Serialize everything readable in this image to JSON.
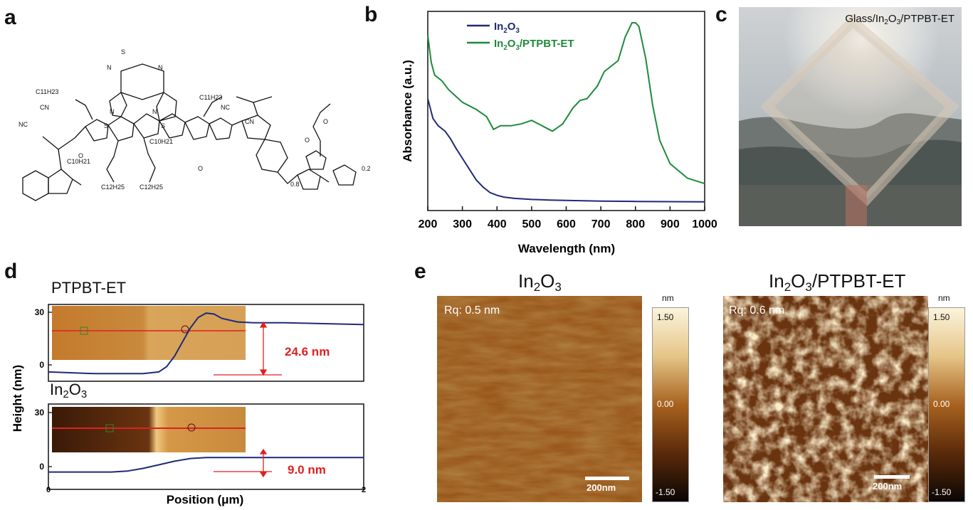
{
  "panels": {
    "a": "a",
    "b": "b",
    "c": "c",
    "d": "d",
    "e": "e"
  },
  "structure": {
    "atoms": {
      "S": "S",
      "N": "N",
      "O": "O",
      "CN": "CN",
      "NC": "NC"
    },
    "c11h23": "C11H23",
    "c10h21": "C10H21",
    "c12h25": "C12H25",
    "sub08": "0.8",
    "sub02": "0.2"
  },
  "colors": {
    "in2o3": "#1f2a78",
    "ptpbt": "#1e8a3a",
    "red": "#e02020"
  },
  "chart_data": [
    {
      "type": "line",
      "xlabel": "Wavelength (nm)",
      "ylabel": "Absorbance (a.u.)",
      "xlim": [
        200,
        1000
      ],
      "xticks": [
        200,
        300,
        400,
        500,
        600,
        700,
        800,
        900,
        1000
      ],
      "legend_position": "top-left",
      "series": [
        {
          "name": "In2O3",
          "color": "#1f2a78",
          "x": [
            200,
            215,
            230,
            250,
            265,
            280,
            300,
            320,
            340,
            360,
            380,
            400,
            420,
            450,
            500,
            550,
            600,
            650,
            700,
            800,
            900,
            1000
          ],
          "y": [
            0.58,
            0.47,
            0.43,
            0.4,
            0.36,
            0.31,
            0.25,
            0.19,
            0.13,
            0.09,
            0.06,
            0.045,
            0.035,
            0.028,
            0.022,
            0.019,
            0.017,
            0.015,
            0.013,
            0.011,
            0.01,
            0.009
          ]
        },
        {
          "name": "In2O3/PTPBT-ET",
          "color": "#1e8a3a",
          "x": [
            200,
            210,
            220,
            240,
            260,
            300,
            340,
            370,
            390,
            410,
            440,
            470,
            500,
            530,
            560,
            590,
            620,
            640,
            660,
            690,
            710,
            730,
            750,
            770,
            790,
            800,
            810,
            830,
            850,
            870,
            900,
            950,
            1000
          ],
          "y": [
            0.93,
            0.78,
            0.71,
            0.68,
            0.63,
            0.56,
            0.52,
            0.48,
            0.41,
            0.43,
            0.43,
            0.44,
            0.46,
            0.43,
            0.4,
            0.44,
            0.53,
            0.57,
            0.58,
            0.65,
            0.73,
            0.76,
            0.79,
            0.92,
            1.0,
            1.0,
            0.98,
            0.8,
            0.54,
            0.35,
            0.22,
            0.14,
            0.11
          ]
        }
      ]
    },
    {
      "type": "line",
      "title": "",
      "xlabel": "Position (μm)",
      "ylabel": "Height (nm)",
      "subplots": [
        {
          "label": "PTPBT-ET",
          "yticks": [
            0,
            30
          ],
          "xlim": [
            0,
            2
          ],
          "step_annotation": "24.6 nm",
          "x": [
            0,
            0.3,
            0.6,
            0.7,
            0.75,
            0.8,
            0.85,
            0.9,
            0.95,
            1.0,
            1.05,
            1.1,
            1.2,
            1.3,
            1.5,
            2.0
          ],
          "y": [
            -4,
            -5,
            -5,
            -4,
            -1,
            5,
            13,
            21,
            27,
            29.5,
            29,
            26.5,
            24.5,
            24,
            24,
            23
          ]
        },
        {
          "label": "In2O3",
          "yticks": [
            0,
            30
          ],
          "xlim": [
            0,
            2
          ],
          "xticks": [
            0,
            2
          ],
          "step_annotation": "9.0 nm",
          "x": [
            0,
            0.4,
            0.5,
            0.6,
            0.7,
            0.8,
            0.9,
            1.0,
            1.2,
            1.5,
            2.0
          ],
          "y": [
            -3,
            -3,
            -2.5,
            -1,
            1,
            3,
            4.5,
            5,
            5,
            5,
            5
          ]
        }
      ]
    }
  ],
  "photo": {
    "label": "Glass/In2O3/PTPBT-ET"
  },
  "afm": {
    "left_title": "In2O3",
    "right_title": "In2O3/PTPBT-ET",
    "left_rq": "Rq: 0.5 nm",
    "right_rq": "Rq: 0.6 nm",
    "scale_bar": "200nm",
    "colorbar_unit": "nm",
    "colorbar_ticks": [
      "1.50",
      "0.00",
      "-1.50"
    ]
  }
}
